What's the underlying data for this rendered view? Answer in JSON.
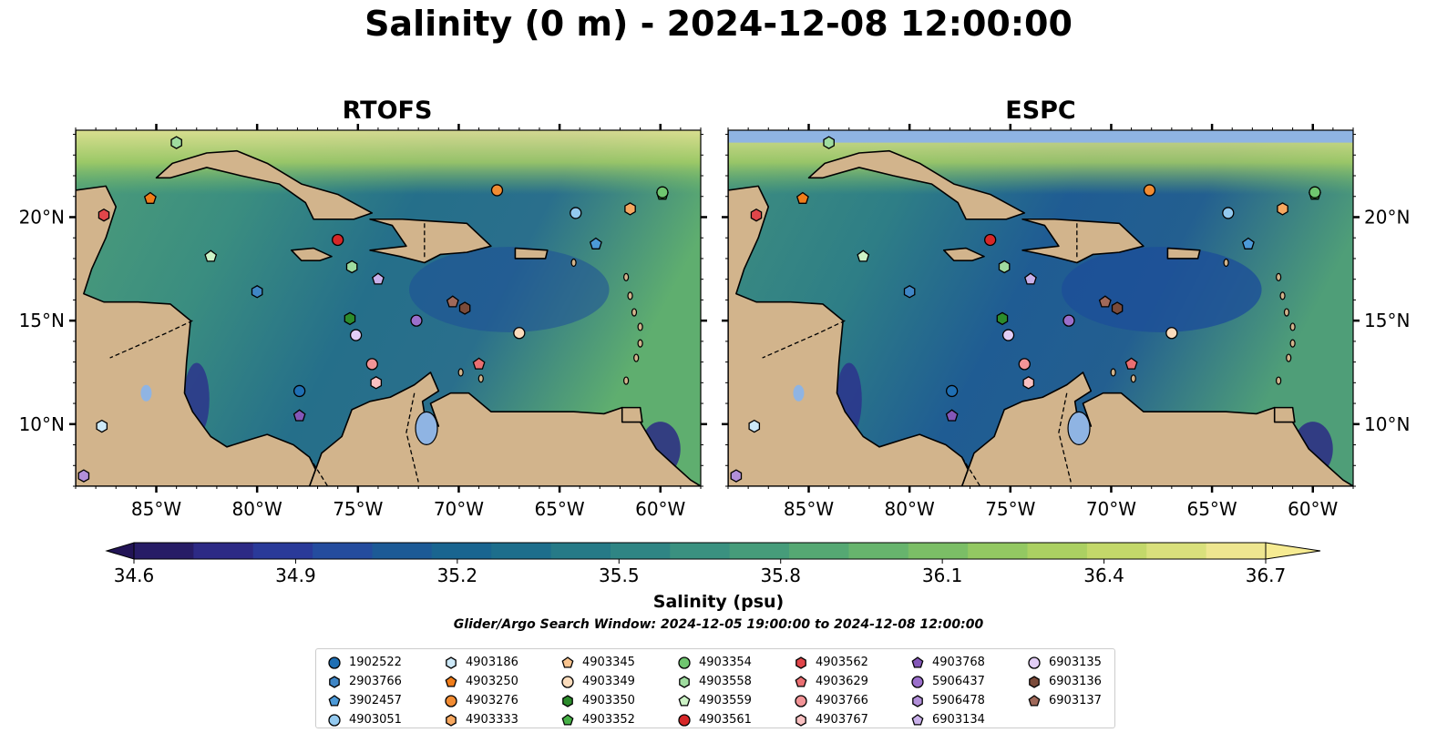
{
  "title": "Salinity (0 m) - 2024-12-08 12:00:00",
  "panels": [
    {
      "title": "RTOFS"
    },
    {
      "title": "ESPC"
    }
  ],
  "axes": {
    "lon_ticks": [
      "85°W",
      "80°W",
      "75°W",
      "70°W",
      "65°W",
      "60°W"
    ],
    "lat_ticks": [
      "20°N",
      "15°N",
      "10°N"
    ]
  },
  "colorbar": {
    "label": "Salinity (psu)",
    "ticks": [
      "34.6",
      "34.9",
      "35.2",
      "35.5",
      "35.8",
      "36.1",
      "36.4",
      "36.7"
    ],
    "min": 34.6,
    "max": 36.7,
    "colors": [
      "#271c66",
      "#2d2a85",
      "#2a3a99",
      "#244c9e",
      "#1c5a96",
      "#196590",
      "#1d6e8c",
      "#267a87",
      "#2f8584",
      "#3a9180",
      "#469c7a",
      "#55a873",
      "#67b46d",
      "#7bbe66",
      "#93c862",
      "#abd062",
      "#c3d86a",
      "#d9e07c",
      "#eee690"
    ]
  },
  "search_window": "Glider/Argo Search Window: 2024-12-05 19:00:00 to 2024-12-08 12:00:00",
  "map": {
    "extent": {
      "lon": [
        -89,
        -58
      ],
      "lat": [
        7,
        24.2
      ]
    },
    "land_color": "#d2b48c",
    "lake_color": "#8fb4e3",
    "espc_nodata_band_lat": [
      23.6,
      24.2
    ]
  },
  "legend": [
    {
      "id": "1902522",
      "marker": "circle",
      "color": "#1f6fb4"
    },
    {
      "id": "2903766",
      "marker": "hexagon",
      "color": "#3f86c6"
    },
    {
      "id": "3902457",
      "marker": "pentagon",
      "color": "#4c9ad8"
    },
    {
      "id": "4903051",
      "marker": "circle",
      "color": "#93c9ef"
    },
    {
      "id": "4903186",
      "marker": "hexagon",
      "color": "#cde9f8"
    },
    {
      "id": "4903250",
      "marker": "pentagon",
      "color": "#f07d1a"
    },
    {
      "id": "4903276",
      "marker": "circle",
      "color": "#f28c33"
    },
    {
      "id": "4903333",
      "marker": "hexagon",
      "color": "#f7a860"
    },
    {
      "id": "4903345",
      "marker": "pentagon",
      "color": "#f9c48f"
    },
    {
      "id": "4903349",
      "marker": "circle",
      "color": "#fbdcbc"
    },
    {
      "id": "4903350",
      "marker": "hexagon",
      "color": "#2c8c2c"
    },
    {
      "id": "4903352",
      "marker": "pentagon",
      "color": "#46b046"
    },
    {
      "id": "4903354",
      "marker": "circle",
      "color": "#6fc66f"
    },
    {
      "id": "4903558",
      "marker": "hexagon",
      "color": "#9fdc9f"
    },
    {
      "id": "4903559",
      "marker": "pentagon",
      "color": "#cdf3c6"
    },
    {
      "id": "4903561",
      "marker": "circle",
      "color": "#d62728"
    },
    {
      "id": "4903562",
      "marker": "hexagon",
      "color": "#e0464a"
    },
    {
      "id": "4903629",
      "marker": "pentagon",
      "color": "#ea6f72"
    },
    {
      "id": "4903766",
      "marker": "circle",
      "color": "#f29497"
    },
    {
      "id": "4903767",
      "marker": "hexagon",
      "color": "#f9c1c2"
    },
    {
      "id": "4903768",
      "marker": "pentagon",
      "color": "#8457b8"
    },
    {
      "id": "5906437",
      "marker": "circle",
      "color": "#9b6fcb"
    },
    {
      "id": "5906478",
      "marker": "hexagon",
      "color": "#b28fd9"
    },
    {
      "id": "6903134",
      "marker": "pentagon",
      "color": "#c9b0ea"
    },
    {
      "id": "6903135",
      "marker": "circle",
      "color": "#e2cdf6"
    },
    {
      "id": "6903136",
      "marker": "hexagon",
      "color": "#7b4b3a"
    },
    {
      "id": "6903137",
      "marker": "pentagon",
      "color": "#a0695a"
    }
  ],
  "markers": [
    {
      "id": "2903766",
      "lon": -80.0,
      "lat": 16.4
    },
    {
      "id": "3902457",
      "lon": -63.2,
      "lat": 18.7
    },
    {
      "id": "1902522",
      "lon": -77.9,
      "lat": 11.6
    },
    {
      "id": "4903051",
      "lon": -64.2,
      "lat": 20.2
    },
    {
      "id": "4903186",
      "lon": -87.7,
      "lat": 9.9
    },
    {
      "id": "4903250",
      "lon": -85.3,
      "lat": 20.9
    },
    {
      "id": "4903276",
      "lon": -68.1,
      "lat": 21.3
    },
    {
      "id": "4903333",
      "lon": -61.5,
      "lat": 20.4
    },
    {
      "id": "4903349",
      "lon": -67.0,
      "lat": 14.4
    },
    {
      "id": "4903350",
      "lon": -75.4,
      "lat": 15.1
    },
    {
      "id": "4903352",
      "lon": -59.9,
      "lat": 21.1
    },
    {
      "id": "4903354",
      "lon": -59.9,
      "lat": 21.2
    },
    {
      "id": "4903558",
      "lon": -75.3,
      "lat": 17.6
    },
    {
      "id": "4903559",
      "lon": -82.3,
      "lat": 18.1
    },
    {
      "id": "4903561",
      "lon": -76.0,
      "lat": 18.9
    },
    {
      "id": "4903562",
      "lon": -87.6,
      "lat": 20.1
    },
    {
      "id": "4903629",
      "lon": -69.0,
      "lat": 12.9
    },
    {
      "id": "4903766",
      "lon": -74.3,
      "lat": 12.9
    },
    {
      "id": "4903767",
      "lon": -74.1,
      "lat": 12.0
    },
    {
      "id": "4903768",
      "lon": -77.9,
      "lat": 10.4
    },
    {
      "id": "5906437",
      "lon": -72.1,
      "lat": 15.0
    },
    {
      "id": "5906478",
      "lon": -88.6,
      "lat": 7.5
    },
    {
      "id": "6903134",
      "lon": -74.0,
      "lat": 17.0
    },
    {
      "id": "6903135",
      "lon": -75.1,
      "lat": 14.3
    },
    {
      "id": "6903136",
      "lon": -69.7,
      "lat": 15.6
    },
    {
      "id": "6903137",
      "lon": -70.3,
      "lat": 15.9
    },
    {
      "id": "4903558",
      "lon": -84.0,
      "lat": 23.6
    }
  ]
}
